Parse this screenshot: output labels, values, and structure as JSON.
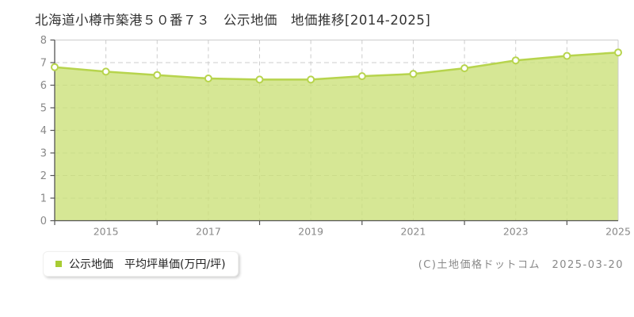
{
  "page": {
    "title": "北海道小樽市築港５０番７３　公示地価　地価推移[2014-2025]"
  },
  "legend": {
    "label": "公示地価　平均坪単価(万円/坪)",
    "marker_color": "#a8cc33"
  },
  "footer": {
    "copyright": "(C)土地価格ドットコム　2025-03-20"
  },
  "colors": {
    "area_fill": "#cbe077",
    "area_opacity": 0.78,
    "line": "#b7d44d",
    "marker_fill": "#ffffff",
    "marker_stroke": "#b7d44d",
    "grid": "#cccccc",
    "axis": "#555555",
    "border": "#cccccc",
    "tick_label": "#888888"
  },
  "chart_data": {
    "type": "area",
    "title": "北海道小樽市築港５０番７３ 公示地価 地価推移[2014-2025]",
    "x": [
      2014,
      2015,
      2016,
      2017,
      2018,
      2019,
      2020,
      2021,
      2022,
      2023,
      2024,
      2025
    ],
    "series": [
      {
        "name": "公示地価 平均坪単価(万円/坪)",
        "values": [
          6.8,
          6.6,
          6.45,
          6.3,
          6.25,
          6.25,
          6.4,
          6.5,
          6.75,
          7.1,
          7.3,
          7.45
        ]
      }
    ],
    "xlabel": "",
    "ylabel": "万円/坪",
    "ylim": [
      0,
      8
    ],
    "ytick_step": 1,
    "ytick_labels": [
      "0",
      "1",
      "2",
      "3",
      "4",
      "5",
      "6",
      "7",
      "8"
    ],
    "xtick_labels": [
      "2015",
      "2017",
      "2019",
      "2021",
      "2023",
      "2025"
    ],
    "xtick_mark_years": [
      2014,
      2016,
      2018,
      2020,
      2022,
      2024
    ],
    "grid": "dashed",
    "legend_position": "bottom-left"
  }
}
